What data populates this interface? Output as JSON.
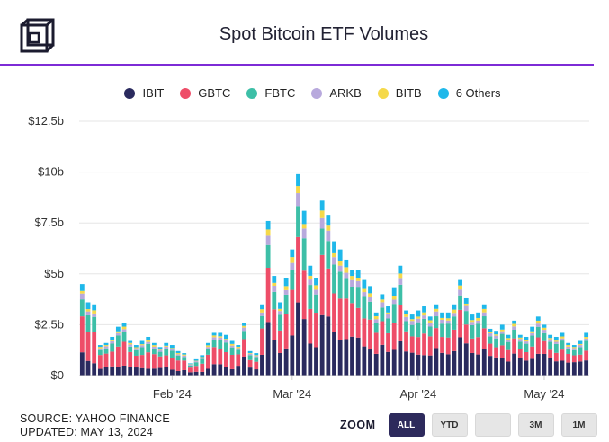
{
  "header": {
    "title": "Spot Bitcoin ETF Volumes"
  },
  "legend": [
    {
      "name": "IBIT",
      "color": "#2a2a5e"
    },
    {
      "name": "GBTC",
      "color": "#ee4d68"
    },
    {
      "name": "FBTC",
      "color": "#3dbfa7"
    },
    {
      "name": "ARKB",
      "color": "#b8a9dd"
    },
    {
      "name": "BITB",
      "color": "#f5d94a"
    },
    {
      "name": "6 Others",
      "color": "#1fb8ea"
    }
  ],
  "footer": {
    "source": "SOURCE: YAHOO FINANCE",
    "updated": "UPDATED: MAY 13, 2024"
  },
  "zoom": {
    "label": "ZOOM",
    "buttons": [
      {
        "label": "ALL",
        "active": true
      },
      {
        "label": "YTD",
        "active": false
      },
      {
        "label": "",
        "active": false
      },
      {
        "label": "3M",
        "active": false
      },
      {
        "label": "1M",
        "active": false
      }
    ]
  },
  "chart_data": {
    "type": "bar",
    "stacked": true,
    "title": "Spot Bitcoin ETF Volumes",
    "ylabel": "",
    "xlabel": "",
    "ylim": [
      0,
      12.5
    ],
    "yticks": [
      "$0",
      "$2.5b",
      "$5b",
      "$7.5b",
      "$10b",
      "$12.5b"
    ],
    "yticks_values": [
      0,
      2.5,
      5,
      7.5,
      10,
      12.5
    ],
    "xticks": [
      {
        "label": "Feb '24",
        "index": 15
      },
      {
        "label": "Mar '24",
        "index": 35
      },
      {
        "label": "Apr '24",
        "index": 56
      },
      {
        "label": "May '24",
        "index": 77
      }
    ],
    "series_names": [
      "IBIT",
      "GBTC",
      "FBTC",
      "ARKB",
      "BITB",
      "6 Others"
    ],
    "unit": "$b",
    "totals": [
      4.5,
      3.6,
      3.5,
      1.5,
      1.6,
      1.9,
      2.4,
      2.6,
      1.7,
      1.5,
      1.7,
      1.9,
      1.6,
      1.4,
      1.6,
      1.5,
      1.2,
      1.1,
      0.6,
      0.8,
      1.0,
      1.6,
      2.1,
      2.1,
      2.0,
      1.7,
      1.5,
      2.6,
      1.2,
      1.1,
      3.5,
      7.6,
      4.9,
      3.6,
      4.8,
      6.2,
      9.9,
      8.1,
      5.4,
      4.8,
      8.6,
      7.9,
      6.6,
      6.2,
      5.7,
      5.2,
      5.2,
      4.7,
      4.4,
      3.1,
      4.0,
      3.4,
      4.3,
      5.4,
      3.2,
      3.0,
      3.2,
      3.4,
      2.9,
      3.5,
      3.1,
      3.1,
      3.5,
      4.7,
      3.8,
      3.0,
      3.1,
      3.5,
      2.3,
      2.2,
      2.5,
      2.0,
      2.7,
      2.0,
      1.9,
      2.4,
      2.9,
      2.5,
      2.0,
      1.9,
      2.1,
      1.6,
      1.5,
      1.7,
      2.1
    ]
  }
}
